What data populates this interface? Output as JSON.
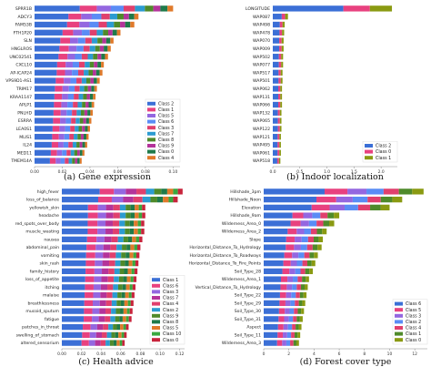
{
  "colors": [
    "#3b6fd6",
    "#e8417f",
    "#9467e0",
    "#5a8cf5",
    "#e0406d",
    "#2c9bd1",
    "#4f8a2a",
    "#b4349a",
    "#1f7a4a",
    "#e07a2b",
    "#8a9a12",
    "#c8243c",
    "#3aa83f"
  ],
  "chart_data": [
    {
      "type": "bar",
      "orientation": "horizontal-stacked",
      "caption": "(a) Gene expression",
      "categories": [
        "SPRR1B",
        "ADCY3",
        "FAM53B",
        "FTH1P20",
        "SLN",
        "HNGLROS",
        "UNC02541",
        "CXCL10",
        "AP-ICAP24",
        "VPS9D1-AS1",
        "TRIM17",
        "KRAA1147",
        "APLP1",
        "PNLHD",
        "ESRRA",
        "LEA0S1",
        "MLIS1",
        "IL24",
        "MED11",
        "TMEM14A"
      ],
      "xticks": [
        "0.00",
        "0.02",
        "0.04",
        "0.06",
        "0.08",
        "0.10"
      ],
      "xlim": [
        0,
        0.105
      ],
      "totals": [
        0.1,
        0.075,
        0.072,
        0.062,
        0.057,
        0.055,
        0.053,
        0.05,
        0.049,
        0.047,
        0.045,
        0.044,
        0.043,
        0.042,
        0.041,
        0.04,
        0.039,
        0.038,
        0.036,
        0.034
      ],
      "series": [
        {
          "name": "Class 2",
          "color": "#3b6fd6"
        },
        {
          "name": "Class 1",
          "color": "#e8417f"
        },
        {
          "name": "Class 5",
          "color": "#9467e0"
        },
        {
          "name": "Class 6",
          "color": "#5a8cf5"
        },
        {
          "name": "Class 3",
          "color": "#e0406d"
        },
        {
          "name": "Class 7",
          "color": "#2c9bd1"
        },
        {
          "name": "Class 8",
          "color": "#4f8a2a"
        },
        {
          "name": "Class 9",
          "color": "#b4349a"
        },
        {
          "name": "Class 0",
          "color": "#1f7a4a"
        },
        {
          "name": "Class 4",
          "color": "#e07a2b"
        }
      ],
      "legend_position": "lower-right"
    },
    {
      "type": "bar",
      "orientation": "horizontal-stacked",
      "caption": "(b) Indoor localization",
      "categories": [
        "LONGITUDE",
        "WAP087",
        "WAP498",
        "WAP478",
        "WAP070",
        "WAP009",
        "WAP502",
        "WAP077",
        "WAP517",
        "WAP501",
        "WAP062",
        "WAP131",
        "WAP066",
        "WAP132",
        "WAP065",
        "WAP122",
        "WAP121",
        "WAP495",
        "WAP061",
        "WAP518"
      ],
      "xticks": [
        "0.0",
        "0.5",
        "1.0",
        "1.5",
        "2.0"
      ],
      "xlim": [
        0,
        2.3
      ],
      "totals": [
        2.2,
        0.28,
        0.22,
        0.21,
        0.2,
        0.2,
        0.19,
        0.19,
        0.18,
        0.18,
        0.17,
        0.17,
        0.17,
        0.16,
        0.16,
        0.16,
        0.15,
        0.15,
        0.15,
        0.14
      ],
      "series": [
        {
          "name": "Class 2",
          "color": "#3b6fd6"
        },
        {
          "name": "Class 0",
          "color": "#e8417f"
        },
        {
          "name": "Class 1",
          "color": "#8a9a12"
        }
      ],
      "legend_position": "lower-right"
    },
    {
      "type": "bar",
      "orientation": "horizontal-stacked",
      "caption": "(c) Health advice",
      "categories": [
        "high_fever",
        "loss_of_balance",
        "yellowish_skin",
        "headache",
        "red_spots_over_body",
        "muscle_wasting",
        "nausea",
        "abdominal_pain",
        "vomiting",
        "skin_rash",
        "family_history",
        "loss_of_appetite",
        "itching",
        "malaise",
        "breathlessness",
        "mucoid_sputum",
        "fatigue",
        "patches_in_throat",
        "swelling_of_stomach",
        "altered_sensorium"
      ],
      "xticks": [
        "0.00",
        "0.02",
        "0.04",
        "0.06",
        "0.08",
        "0.10",
        "0.12"
      ],
      "xlim": [
        0,
        0.125
      ],
      "totals": [
        0.123,
        0.118,
        0.085,
        0.085,
        0.084,
        0.084,
        0.082,
        0.08,
        0.079,
        0.078,
        0.077,
        0.076,
        0.075,
        0.074,
        0.073,
        0.072,
        0.071,
        0.068,
        0.066,
        0.064
      ],
      "series": [
        {
          "name": "Class 1",
          "color": "#3b6fd6"
        },
        {
          "name": "Class 6",
          "color": "#e8417f"
        },
        {
          "name": "Class 3",
          "color": "#9467e0"
        },
        {
          "name": "Class 7",
          "color": "#b4349a"
        },
        {
          "name": "Class 4",
          "color": "#e0406d"
        },
        {
          "name": "Class 2",
          "color": "#2c9bd1"
        },
        {
          "name": "Class 9",
          "color": "#4f8a2a"
        },
        {
          "name": "Class 8",
          "color": "#1f7a4a"
        },
        {
          "name": "Class 5",
          "color": "#e07a2b"
        },
        {
          "name": "Class 10",
          "color": "#3aa83f"
        },
        {
          "name": "Class 0",
          "color": "#c8243c"
        }
      ],
      "legend_position": "lower-right"
    },
    {
      "type": "bar",
      "orientation": "horizontal-stacked",
      "caption": "(d) Forest cover type",
      "categories": [
        "Hillshade_3pm",
        "Hillshade_Noon",
        "Elevation",
        "Hillshade_9am",
        "Wilderness_Area_0",
        "Wilderness_Area_2",
        "Slope",
        "Horizontal_Distance_To_Hydrology",
        "Horizontal_Distance_To_Roadways",
        "Horizontal_Distance_To_Fire_Points",
        "Soil_Type_28",
        "Wilderness_Area_1",
        "Vertical_Distance_To_Hydrology",
        "Soil_Type_22",
        "Soil_Type_29",
        "Soil_Type_30",
        "Soil_Type_31",
        "Aspect",
        "Soil_Type_11",
        "Wilderness_Area_3"
      ],
      "xticks": [
        "0",
        "2",
        "4",
        "6",
        "8",
        "10",
        "12"
      ],
      "xlim": [
        0,
        13
      ],
      "totals": [
        12.7,
        11.0,
        10.0,
        6.0,
        5.6,
        5.0,
        4.7,
        4.6,
        4.3,
        4.1,
        3.9,
        3.6,
        3.5,
        3.4,
        3.3,
        3.2,
        3.1,
        3.0,
        2.9,
        2.8
      ],
      "series": [
        {
          "name": "Class 6",
          "color": "#3b6fd6"
        },
        {
          "name": "Class 5",
          "color": "#e8417f"
        },
        {
          "name": "Class 3",
          "color": "#9467e0"
        },
        {
          "name": "Class 2",
          "color": "#5a8cf5"
        },
        {
          "name": "Class 4",
          "color": "#e0406d"
        },
        {
          "name": "Class 1",
          "color": "#4f8a2a"
        },
        {
          "name": "Class 0",
          "color": "#8a9a12"
        }
      ],
      "legend_position": "lower-right"
    }
  ]
}
